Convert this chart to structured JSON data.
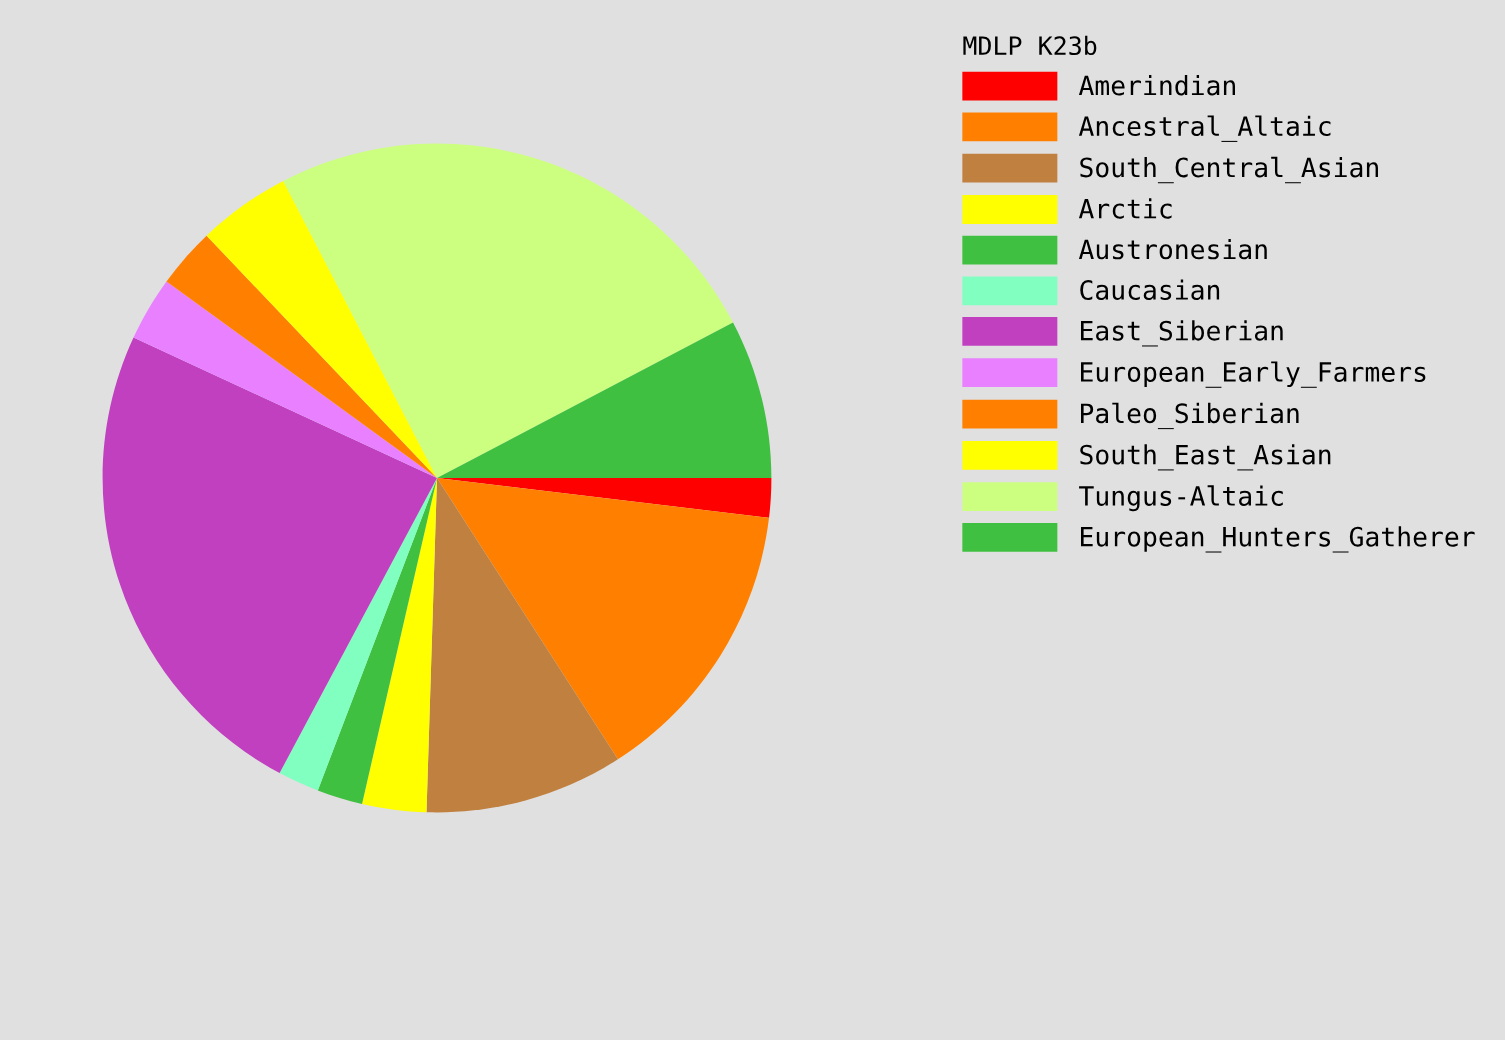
{
  "chart_data": {
    "type": "pie",
    "legend_title": "MDLP K23b",
    "legend": "right",
    "categories": [
      "Amerindian",
      "Ancestral_Altaic",
      "South_Central_Asian",
      "Arctic",
      "Austronesian",
      "Caucasian",
      "East_Siberian",
      "European_Early_Farmers",
      "Paleo_Siberian",
      "South_East_Asian",
      "Tungus-Altaic",
      "European_Hunters_Gatherer"
    ],
    "values": [
      1.9,
      14.0,
      9.6,
      3.1,
      2.2,
      2.0,
      24.1,
      3.1,
      2.9,
      4.5,
      24.9,
      7.7
    ],
    "colors": [
      "#ff0000",
      "#ff8000",
      "#c08040",
      "#ffff00",
      "#40c040",
      "#80ffc0",
      "#c040c0",
      "#e880ff",
      "#ff8000",
      "#ffff00",
      "#ccff80",
      "#40c040"
    ]
  }
}
